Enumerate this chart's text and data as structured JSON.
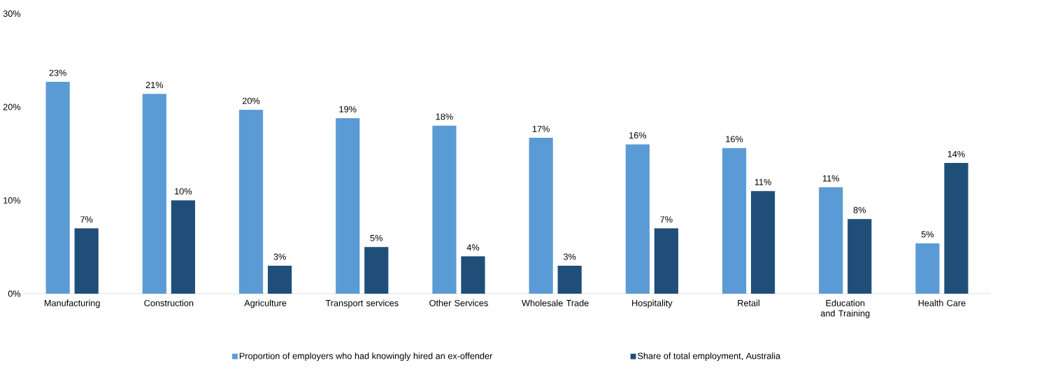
{
  "chart_data": {
    "type": "bar",
    "categories": [
      "Manufacturing",
      "Construction",
      "Agriculture",
      "Transport services",
      "Other Services",
      "Wholesale Trade",
      "Hospitality",
      "Retail",
      "Education and Training",
      "Health Care"
    ],
    "series": [
      {
        "name": "Proportion of employers who had knowingly hired an ex-offender",
        "color": "#5b9bd5",
        "values": [
          22.7,
          21.4,
          19.7,
          18.8,
          18.0,
          16.7,
          16.0,
          15.6,
          11.4,
          5.4
        ],
        "value_labels": [
          "23%",
          "21%",
          "20%",
          "19%",
          "18%",
          "17%",
          "16%",
          "16%",
          "11%",
          "5%"
        ]
      },
      {
        "name": "Share of total employment, Australia",
        "color": "#1f4e79",
        "values": [
          7,
          10,
          3,
          5,
          4,
          3,
          7,
          11,
          8,
          14
        ],
        "value_labels": [
          "7%",
          "10%",
          "3%",
          "5%",
          "4%",
          "3%",
          "7%",
          "11%",
          "8%",
          "14%"
        ]
      }
    ],
    "ylim": [
      0,
      30
    ],
    "yticks": [
      {
        "value": 0,
        "label": "0%"
      },
      {
        "value": 10,
        "label": "10%"
      },
      {
        "value": 20,
        "label": "20%"
      },
      {
        "value": 30,
        "label": "30%"
      }
    ],
    "legend": "bottom"
  }
}
